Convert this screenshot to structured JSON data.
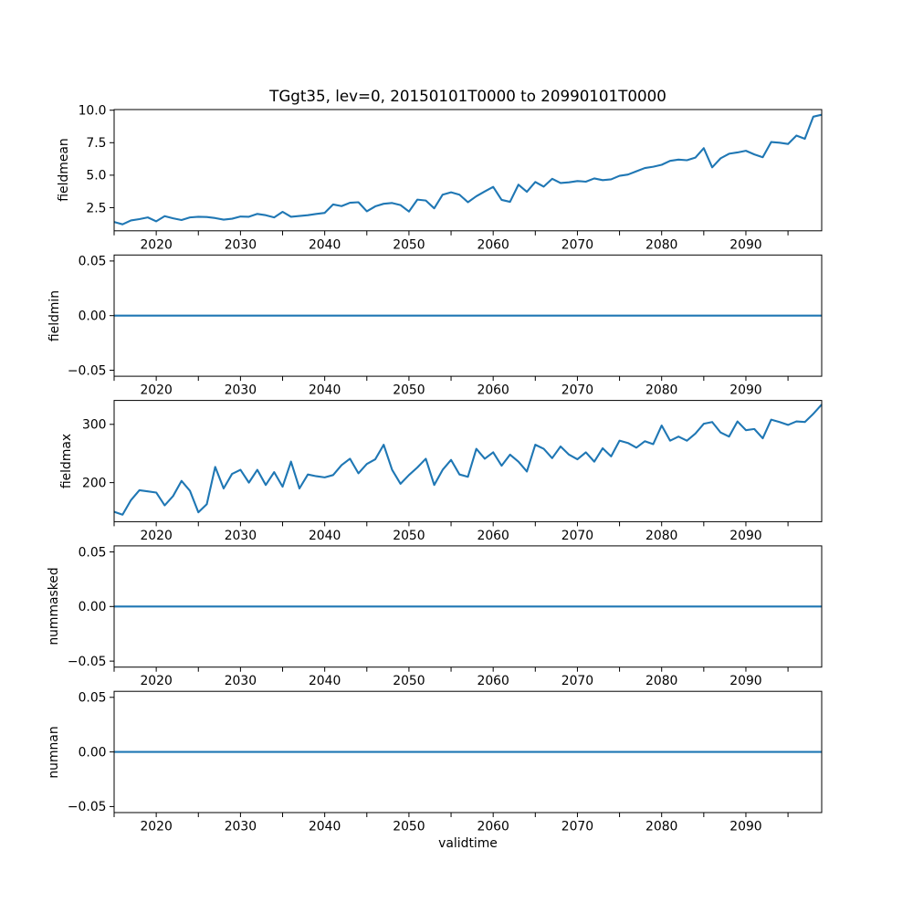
{
  "title": "TGgt35, lev=0, 20150101T0000 to 20990101T0000",
  "xlabel": "validtime",
  "colors": {
    "line": "#1f77b4",
    "axes": "#000000",
    "background": "#ffffff"
  },
  "x_axis": {
    "tick_marks": [
      2015,
      2020,
      2025,
      2030,
      2035,
      2040,
      2045,
      2050,
      2055,
      2060,
      2065,
      2070,
      2075,
      2080,
      2085,
      2090,
      2095
    ],
    "tick_labels": [
      "2020",
      "2030",
      "2040",
      "2050",
      "2060",
      "2070",
      "2080",
      "2090"
    ],
    "tick_label_years": [
      2020,
      2030,
      2040,
      2050,
      2060,
      2070,
      2080,
      2090
    ]
  },
  "chart_data": [
    {
      "type": "line",
      "ylabel": "fieldmean",
      "x_start": 2015,
      "x_step": 1,
      "xlim": [
        2015,
        2099
      ],
      "ylim": [
        0.72,
        10.05
      ],
      "yticks": [
        2.5,
        5.0,
        7.5,
        10.0
      ],
      "ytick_labels": [
        "2.5",
        "5.0",
        "7.5",
        "10.0"
      ],
      "values": [
        1.4,
        1.22,
        1.52,
        1.62,
        1.75,
        1.45,
        1.85,
        1.68,
        1.55,
        1.75,
        1.8,
        1.78,
        1.7,
        1.58,
        1.65,
        1.82,
        1.8,
        2.02,
        1.92,
        1.75,
        2.18,
        1.8,
        1.86,
        1.92,
        2.02,
        2.1,
        2.75,
        2.62,
        2.88,
        2.92,
        2.22,
        2.6,
        2.8,
        2.86,
        2.7,
        2.2,
        3.12,
        3.05,
        2.45,
        3.5,
        3.68,
        3.5,
        2.92,
        3.38,
        3.75,
        4.1,
        3.1,
        2.95,
        4.27,
        3.72,
        4.48,
        4.12,
        4.72,
        4.4,
        4.45,
        4.55,
        4.5,
        4.75,
        4.62,
        4.68,
        4.95,
        5.05,
        5.3,
        5.55,
        5.65,
        5.8,
        6.1,
        6.2,
        6.15,
        6.35,
        7.08,
        5.6,
        6.3,
        6.65,
        6.75,
        6.88,
        6.6,
        6.38,
        7.55,
        7.5,
        7.4,
        8.05,
        7.8,
        9.5,
        9.65
      ]
    },
    {
      "type": "line",
      "ylabel": "fieldmin",
      "x_start": 2015,
      "x_step": 1,
      "xlim": [
        2015,
        2099
      ],
      "ylim": [
        -0.0555,
        0.0555
      ],
      "yticks": [
        -0.05,
        0.0,
        0.05
      ],
      "ytick_labels": [
        "−0.05",
        "0.00",
        "0.05"
      ],
      "constant_value": 0,
      "n_points": 85
    },
    {
      "type": "line",
      "ylabel": "fieldmax",
      "x_start": 2015,
      "x_step": 1,
      "xlim": [
        2015,
        2099
      ],
      "ylim": [
        133,
        341
      ],
      "yticks": [
        200,
        300
      ],
      "ytick_labels": [
        "200",
        "300"
      ],
      "values": [
        150,
        145,
        170,
        187,
        185,
        183,
        161,
        177,
        203,
        186,
        149,
        163,
        227,
        190,
        215,
        222,
        200,
        222,
        196,
        218,
        193,
        236,
        190,
        214,
        211,
        209,
        213,
        230,
        241,
        216,
        232,
        240,
        265,
        222,
        198,
        213,
        226,
        241,
        196,
        222,
        239,
        214,
        210,
        258,
        241,
        252,
        229,
        248,
        236,
        219,
        265,
        258,
        242,
        262,
        248,
        240,
        252,
        236,
        259,
        245,
        272,
        268,
        260,
        271,
        266,
        298,
        272,
        279,
        272,
        284,
        301,
        304,
        286,
        279,
        305,
        290,
        292,
        276,
        308,
        304,
        299,
        305,
        304,
        318,
        334
      ]
    },
    {
      "type": "line",
      "ylabel": "nummasked",
      "x_start": 2015,
      "x_step": 1,
      "xlim": [
        2015,
        2099
      ],
      "ylim": [
        -0.0555,
        0.0555
      ],
      "yticks": [
        -0.05,
        0.0,
        0.05
      ],
      "ytick_labels": [
        "−0.05",
        "0.00",
        "0.05"
      ],
      "constant_value": 0,
      "n_points": 85
    },
    {
      "type": "line",
      "ylabel": "numnan",
      "x_start": 2015,
      "x_step": 1,
      "xlim": [
        2015,
        2099
      ],
      "ylim": [
        -0.0555,
        0.0555
      ],
      "yticks": [
        -0.05,
        0.0,
        0.05
      ],
      "ytick_labels": [
        "−0.05",
        "0.00",
        "0.05"
      ],
      "constant_value": 0,
      "n_points": 85
    }
  ]
}
